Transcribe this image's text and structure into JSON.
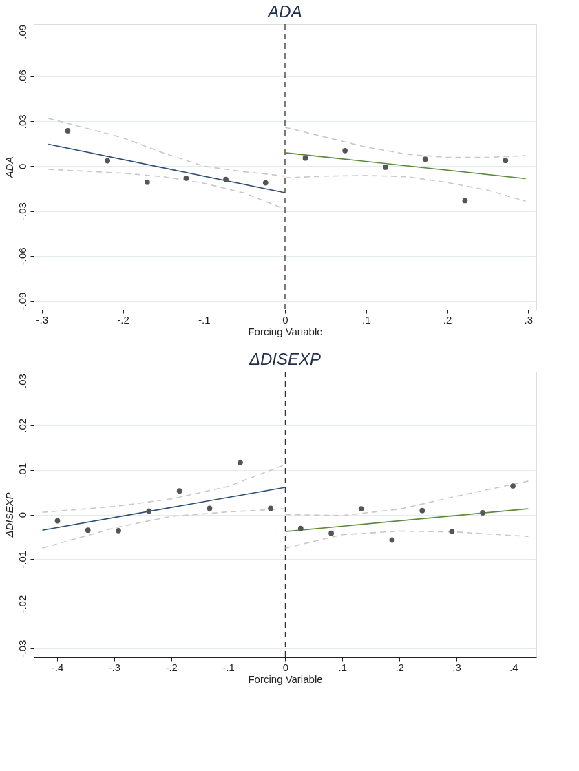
{
  "chart_data": [
    {
      "type": "scatter",
      "title": "ADA",
      "xlabel": "Forcing Variable",
      "ylabel": "ADA",
      "xlim": [
        -0.31,
        0.31
      ],
      "ylim": [
        -0.096,
        0.095
      ],
      "xticks": [
        {
          "value": -0.3,
          "label": "-.3"
        },
        {
          "value": -0.2,
          "label": "-.2"
        },
        {
          "value": -0.1,
          "label": "-.1"
        },
        0,
        {
          "value": 0.1,
          "label": ".1"
        },
        {
          "value": 0.2,
          "label": ".2"
        },
        {
          "value": 0.3,
          "label": ".3"
        }
      ],
      "yticks": [
        {
          "value": -0.09,
          "label": "-.09"
        },
        {
          "value": -0.06,
          "label": "-.06"
        },
        {
          "value": -0.03,
          "label": "-.03"
        },
        0,
        {
          "value": 0.03,
          "label": ".03"
        },
        {
          "value": 0.06,
          "label": ".06"
        },
        {
          "value": 0.09,
          "label": ".09"
        }
      ],
      "grid": "y",
      "legend": false,
      "ref_lines": [
        {
          "axis": "x",
          "value": 0,
          "color": "#333333",
          "line_style": "dashed"
        }
      ],
      "series": [
        {
          "type": "line",
          "marker": "none",
          "color": "#c8c8c8",
          "line_style": "dashed",
          "x": [
            -0.292,
            -0.2,
            -0.15,
            -0.1,
            -0.05,
            0
          ],
          "values": [
            0.032,
            0.019,
            0.0088,
            0.0,
            -0.0038,
            -0.0066
          ]
        },
        {
          "type": "line",
          "marker": "none",
          "color": "#c8c8c8",
          "line_style": "dashed",
          "x": [
            -0.292,
            -0.2,
            -0.15,
            -0.1,
            -0.05,
            0
          ],
          "values": [
            -0.0021,
            -0.0047,
            -0.007,
            -0.0114,
            -0.018,
            -0.0287
          ]
        },
        {
          "type": "line",
          "marker": "none",
          "color": "#c8c8c8",
          "line_style": "dashed",
          "x": [
            0,
            0.1,
            0.15,
            0.2,
            0.25,
            0.297
          ],
          "values": [
            0.026,
            0.0128,
            0.008,
            0.0059,
            0.0059,
            0.0071
          ]
        },
        {
          "type": "line",
          "marker": "none",
          "color": "#c8c8c8",
          "line_style": "dashed",
          "x": [
            0,
            0.05,
            0.1,
            0.15,
            0.2,
            0.25,
            0.297
          ],
          "values": [
            -0.0078,
            -0.0066,
            -0.0062,
            -0.007,
            -0.0109,
            -0.016,
            -0.0234
          ]
        },
        {
          "type": "line",
          "marker": "none",
          "color": "#2b4d75",
          "line_style": "solid",
          "x": [
            -0.292,
            0
          ],
          "values": [
            0.0147,
            -0.0178
          ]
        },
        {
          "type": "line",
          "marker": "none",
          "color": "#5a8a3a",
          "line_style": "solid",
          "x": [
            0,
            0.297
          ],
          "values": [
            0.009,
            -0.0083
          ]
        },
        {
          "marker": "circle",
          "color": "#555555",
          "x": [
            -0.268,
            -0.219,
            -0.17,
            -0.122,
            -0.073,
            -0.024,
            0.025,
            0.074,
            0.124,
            0.173,
            0.222,
            0.272
          ],
          "values": [
            0.0237,
            0.0036,
            -0.0107,
            -0.008,
            -0.0088,
            -0.0111,
            0.0054,
            0.0104,
            -0.0007,
            0.0047,
            -0.023,
            0.0038
          ]
        }
      ]
    },
    {
      "type": "scatter",
      "title": "ΔDISEXP",
      "xlabel": "Forcing Variable",
      "ylabel": "ΔDISEXP",
      "xlim": [
        -0.441,
        0.44
      ],
      "ylim": [
        -0.032,
        0.032
      ],
      "xticks": [
        {
          "value": -0.4,
          "label": "-.4"
        },
        {
          "value": -0.3,
          "label": "-.3"
        },
        {
          "value": -0.2,
          "label": "-.2"
        },
        {
          "value": -0.1,
          "label": "-.1"
        },
        0,
        {
          "value": 0.1,
          "label": ".1"
        },
        {
          "value": 0.2,
          "label": ".2"
        },
        {
          "value": 0.3,
          "label": ".3"
        },
        {
          "value": 0.4,
          "label": ".4"
        }
      ],
      "yticks": [
        {
          "value": -0.03,
          "label": "-.03"
        },
        {
          "value": -0.02,
          "label": "-.02"
        },
        {
          "value": -0.01,
          "label": "-.01"
        },
        0,
        {
          "value": 0.01,
          "label": ".01"
        },
        {
          "value": 0.02,
          "label": ".02"
        },
        {
          "value": 0.03,
          "label": ".03"
        }
      ],
      "grid": "y",
      "legend": false,
      "ref_lines": [
        {
          "axis": "x",
          "value": 0,
          "color": "#333333",
          "line_style": "dashed"
        }
      ],
      "series": [
        {
          "type": "line",
          "marker": "none",
          "color": "#c8c8c8",
          "line_style": "dashed",
          "x": [
            -0.426,
            -0.3,
            -0.2,
            -0.1,
            0
          ],
          "values": [
            0.0005,
            0.0018,
            0.0035,
            0.0063,
            0.0112
          ]
        },
        {
          "type": "line",
          "marker": "none",
          "color": "#c8c8c8",
          "line_style": "dashed",
          "x": [
            -0.426,
            -0.3,
            -0.2,
            -0.1,
            0
          ],
          "values": [
            -0.0075,
            -0.003,
            -0.0004,
            0.0006,
            0.0013
          ]
        },
        {
          "type": "line",
          "marker": "none",
          "color": "#c8c8c8",
          "line_style": "dashed",
          "x": [
            0,
            0.1,
            0.2,
            0.3,
            0.426
          ],
          "values": [
            0.0,
            -0.0002,
            0.0012,
            0.0041,
            0.0075
          ]
        },
        {
          "type": "line",
          "marker": "none",
          "color": "#c8c8c8",
          "line_style": "dashed",
          "x": [
            0,
            0.1,
            0.2,
            0.3,
            0.426
          ],
          "values": [
            -0.0075,
            -0.0045,
            -0.0037,
            -0.0039,
            -0.0049
          ]
        },
        {
          "type": "line",
          "marker": "none",
          "color": "#2b4d75",
          "line_style": "solid",
          "x": [
            -0.426,
            0
          ],
          "values": [
            -0.0035,
            0.0061
          ]
        },
        {
          "type": "line",
          "marker": "none",
          "color": "#5a8a3a",
          "line_style": "solid",
          "x": [
            0,
            0.426
          ],
          "values": [
            -0.0038,
            0.0013
          ]
        },
        {
          "marker": "circle",
          "color": "#555555",
          "x": [
            -0.3994,
            -0.346,
            -0.2925,
            -0.239,
            -0.1855,
            -0.1327,
            -0.079,
            -0.0258,
            0.027,
            0.0805,
            0.133,
            0.187,
            0.24,
            0.292,
            0.346,
            0.399
          ],
          "values": [
            -0.0014,
            -0.0035,
            -0.0036,
            0.0008,
            0.0053,
            0.0014,
            0.0117,
            0.0014,
            -0.0031,
            -0.0042,
            0.0013,
            -0.0057,
            0.0009,
            -0.0038,
            0.0004,
            0.0064
          ]
        }
      ]
    }
  ]
}
